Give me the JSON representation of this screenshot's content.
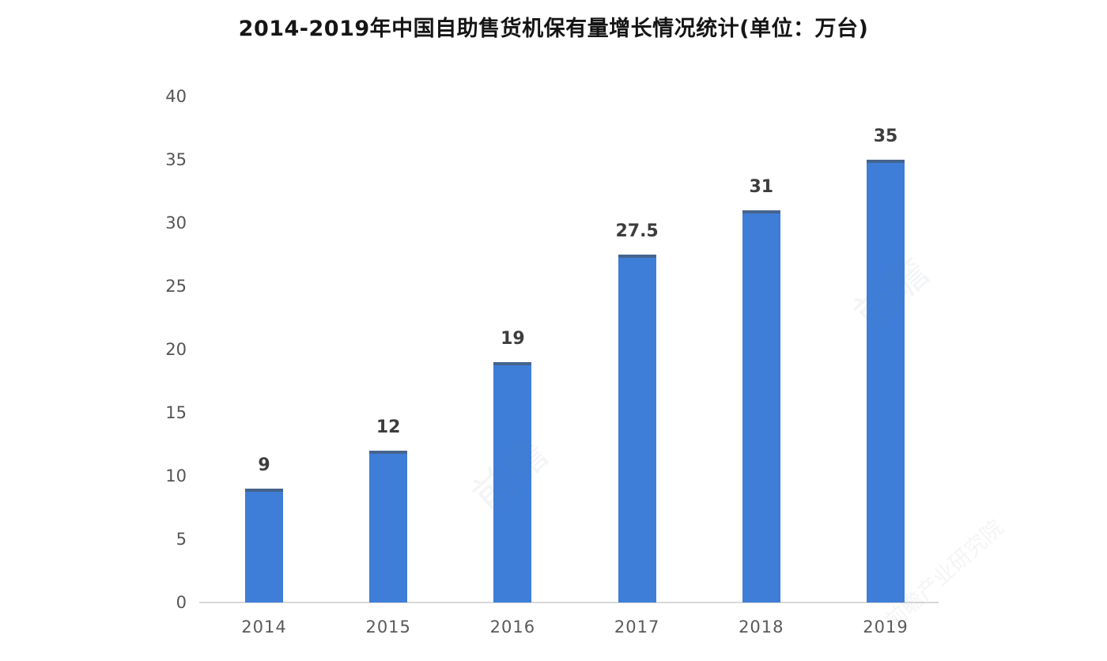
{
  "title": "2014-2019年中国自助售货机保有量增长情况统计(单位：万台)",
  "chart_data": {
    "type": "bar",
    "title": "2014-2019年中国自助售货机保有量增长情况统计(单位：万台)",
    "categories": [
      "2014",
      "2015",
      "2016",
      "2017",
      "2018",
      "2019"
    ],
    "values": [
      9,
      12,
      19,
      27.5,
      31,
      35
    ],
    "value_labels": [
      "9",
      "12",
      "19",
      "27.5",
      "31",
      "35"
    ],
    "xlabel": "",
    "ylabel": "",
    "ylim": [
      0,
      40
    ],
    "yticks": [
      0,
      5,
      10,
      15,
      20,
      25,
      30,
      35,
      40
    ],
    "grid": false,
    "legend": null,
    "bar_color": "#3e7dd8",
    "bar_cap_color": "rgba(74,88,102,0.65)",
    "axis_line_color": "#d9d9d9",
    "tick_label_color": "#5a5a5a",
    "value_label_color": "#3d3d3d"
  },
  "watermarks": [
    {
      "text": "前瞻"
    },
    {
      "text": "前瞻"
    },
    {
      "text": "前瞻产业研究院"
    }
  ]
}
